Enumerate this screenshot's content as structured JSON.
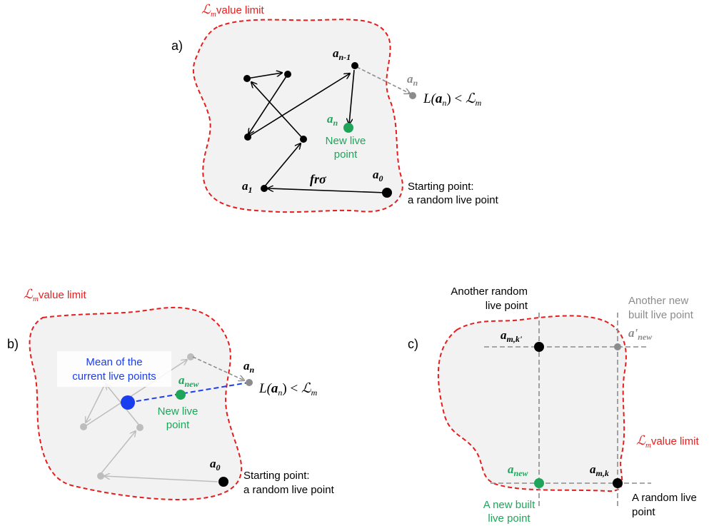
{
  "colors": {
    "region_fill": "#f2f2f2",
    "boundary": "#e41e1e",
    "black": "#000000",
    "grey": "#8c8c8c",
    "light_grey": "#bdbdbd",
    "green": "#1fa55a",
    "blue": "#1b3df0",
    "mean_label": "#1b3df0"
  },
  "panel_a": {
    "label": "a)",
    "limit_symbol": "ℒ",
    "limit_sub": "m",
    "limit_text": "value limit",
    "a_prev_main": "a",
    "a_prev_sub": "n-1",
    "a_n_main": "a",
    "a_n_sub": "n",
    "reject_L": "L(",
    "reject_a": "a",
    "reject_sub": "n",
    "reject_rest": ") < ",
    "reject_calL": "ℒ",
    "reject_calL_sub": "m",
    "new_main": "a",
    "new_sub": "n",
    "new_live_1": "New live",
    "new_live_2": "point",
    "a1_main": "a",
    "a1_sub": "1",
    "a0_main": "a",
    "a0_sub": "0",
    "step": "frσ",
    "start_1": "Starting point:",
    "start_2": "a random live point"
  },
  "panel_b": {
    "label": "b)",
    "limit_symbol": "ℒ",
    "limit_sub": "m",
    "limit_text": "value limit",
    "mean_1": "Mean of the",
    "mean_2": "current live points",
    "anew_main": "a",
    "anew_sub": "new",
    "an_main": "a",
    "an_sub": "n",
    "reject_L": "L(",
    "reject_a": "a",
    "reject_sub": "n",
    "reject_rest": ") < ",
    "reject_calL": "ℒ",
    "reject_calL_sub": "m",
    "new_live_1": "New live",
    "new_live_2": "point",
    "a0_main": "a",
    "a0_sub": "0",
    "start_1": "Starting point:",
    "start_2": "a random live point"
  },
  "panel_c": {
    "label": "c)",
    "another_1": "Another random",
    "another_2": "live point",
    "another_new_1": "Another new",
    "another_new_2": "built live point",
    "amk2_main": "a",
    "amk2_sub": "m,k'",
    "aprime_main": "a'",
    "aprime_sub": "new",
    "limit_symbol": "ℒ",
    "limit_sub": "m",
    "limit_text": "value limit",
    "anew_main": "a",
    "anew_sub": "new",
    "amk_main": "a",
    "amk_sub": "m,k",
    "new_built_1": "A new built",
    "new_built_2": "live point",
    "random_1": "A random live",
    "random_2": "point"
  }
}
